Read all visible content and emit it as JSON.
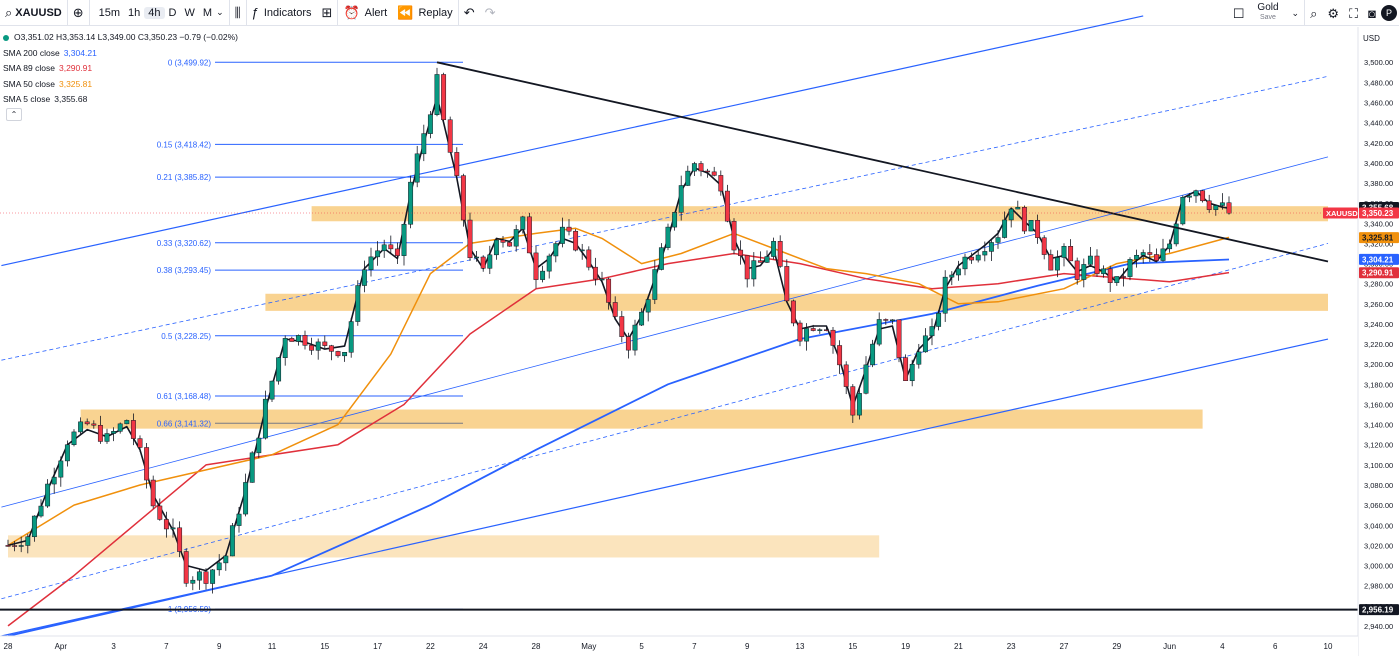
{
  "toolbar": {
    "symbol": "XAUUSD",
    "intervals": [
      "15m",
      "1h",
      "4h",
      "D",
      "W",
      "M"
    ],
    "active_interval": "4h",
    "indicators_label": "Indicators",
    "alert_label": "Alert",
    "replay_label": "Replay",
    "gold_label": "Gold",
    "save_label": "Save",
    "avatar_letter": "P"
  },
  "legend": {
    "ohlc": "O3,351.02 H3,353.14 L3,349.00 C3,350.23 −0.79 (−0.02%)",
    "sma": [
      {
        "label": "SMA 200 close",
        "value": "3,304.21",
        "color": "#2962ff"
      },
      {
        "label": "SMA 89 close",
        "value": "3,290.91",
        "color": "#e0303b"
      },
      {
        "label": "SMA 50 close",
        "value": "3,325.81",
        "color": "#f0900c"
      },
      {
        "label": "SMA 5 close",
        "value": "3,355.68",
        "color": "#131722"
      }
    ],
    "collapse_icon": "chevron-up-icon"
  },
  "chart_data": {
    "type": "candlestick",
    "symbol": "XAUUSD",
    "interval": "4h",
    "currency_label": "USD",
    "ylim": [
      2930,
      3535
    ],
    "y_ticks": [
      2940,
      2960,
      2980,
      3000,
      3020,
      3040,
      3060,
      3080,
      3100,
      3120,
      3140,
      3160,
      3180,
      3200,
      3220,
      3240,
      3260,
      3280,
      3300,
      3320,
      3340,
      3360,
      3380,
      3400,
      3420,
      3440,
      3460,
      3480,
      3500,
      3520
    ],
    "x_ticks": [
      {
        "label": "28",
        "bar": 0
      },
      {
        "label": "Apr",
        "bar": 8
      },
      {
        "label": "3",
        "bar": 16
      },
      {
        "label": "7",
        "bar": 24
      },
      {
        "label": "9",
        "bar": 32
      },
      {
        "label": "11",
        "bar": 40
      },
      {
        "label": "15",
        "bar": 48
      },
      {
        "label": "17",
        "bar": 56
      },
      {
        "label": "22",
        "bar": 64
      },
      {
        "label": "24",
        "bar": 72
      },
      {
        "label": "28",
        "bar": 80
      },
      {
        "label": "May",
        "bar": 88
      },
      {
        "label": "5",
        "bar": 96
      },
      {
        "label": "7",
        "bar": 104
      },
      {
        "label": "9",
        "bar": 112
      },
      {
        "label": "13",
        "bar": 120
      },
      {
        "label": "15",
        "bar": 128
      },
      {
        "label": "19",
        "bar": 136
      },
      {
        "label": "21",
        "bar": 144
      },
      {
        "label": "23",
        "bar": 152
      },
      {
        "label": "27",
        "bar": 160
      },
      {
        "label": "29",
        "bar": 168
      },
      {
        "label": "Jun",
        "bar": 176
      },
      {
        "label": "4",
        "bar": 184
      },
      {
        "label": "6",
        "bar": 192
      },
      {
        "label": "10",
        "bar": 200
      }
    ],
    "anchors": [
      [
        0,
        3020
      ],
      [
        3,
        3030
      ],
      [
        6,
        3080
      ],
      [
        9,
        3125
      ],
      [
        12,
        3140
      ],
      [
        15,
        3125
      ],
      [
        18,
        3145
      ],
      [
        20,
        3110
      ],
      [
        22,
        3060
      ],
      [
        25,
        3030
      ],
      [
        27,
        2990
      ],
      [
        30,
        2990
      ],
      [
        33,
        3010
      ],
      [
        36,
        3080
      ],
      [
        39,
        3160
      ],
      [
        42,
        3230
      ],
      [
        45,
        3225
      ],
      [
        48,
        3215
      ],
      [
        51,
        3215
      ],
      [
        54,
        3300
      ],
      [
        57,
        3320
      ],
      [
        59,
        3300
      ],
      [
        61,
        3380
      ],
      [
        63,
        3430
      ],
      [
        65,
        3480
      ],
      [
        66,
        3440
      ],
      [
        68,
        3380
      ],
      [
        70,
        3310
      ],
      [
        72,
        3290
      ],
      [
        74,
        3330
      ],
      [
        76,
        3320
      ],
      [
        78,
        3340
      ],
      [
        80,
        3290
      ],
      [
        82,
        3310
      ],
      [
        84,
        3330
      ],
      [
        86,
        3320
      ],
      [
        88,
        3300
      ],
      [
        90,
        3280
      ],
      [
        92,
        3240
      ],
      [
        94,
        3220
      ],
      [
        96,
        3250
      ],
      [
        98,
        3290
      ],
      [
        100,
        3330
      ],
      [
        102,
        3380
      ],
      [
        104,
        3400
      ],
      [
        106,
        3390
      ],
      [
        108,
        3380
      ],
      [
        110,
        3320
      ],
      [
        112,
        3290
      ],
      [
        114,
        3300
      ],
      [
        116,
        3320
      ],
      [
        118,
        3260
      ],
      [
        120,
        3230
      ],
      [
        122,
        3240
      ],
      [
        124,
        3240
      ],
      [
        126,
        3200
      ],
      [
        128,
        3150
      ],
      [
        130,
        3200
      ],
      [
        132,
        3240
      ],
      [
        134,
        3240
      ],
      [
        136,
        3180
      ],
      [
        138,
        3220
      ],
      [
        140,
        3230
      ],
      [
        142,
        3280
      ],
      [
        144,
        3300
      ],
      [
        146,
        3310
      ],
      [
        148,
        3320
      ],
      [
        150,
        3330
      ],
      [
        152,
        3360
      ],
      [
        154,
        3340
      ],
      [
        156,
        3330
      ],
      [
        158,
        3300
      ],
      [
        160,
        3310
      ],
      [
        162,
        3290
      ],
      [
        164,
        3300
      ],
      [
        166,
        3290
      ],
      [
        168,
        3280
      ],
      [
        170,
        3300
      ],
      [
        172,
        3310
      ],
      [
        174,
        3300
      ],
      [
        176,
        3320
      ],
      [
        178,
        3370
      ],
      [
        180,
        3375
      ],
      [
        182,
        3360
      ],
      [
        184,
        3355
      ],
      [
        185,
        3350
      ]
    ],
    "sma_paths": {
      "sma200": [
        [
          0,
          2930
        ],
        [
          40,
          2990
        ],
        [
          64,
          3060
        ],
        [
          80,
          3115
        ],
        [
          100,
          3180
        ],
        [
          120,
          3225
        ],
        [
          140,
          3250
        ],
        [
          156,
          3278
        ],
        [
          170,
          3300
        ],
        [
          185,
          3304
        ]
      ],
      "sma89": [
        [
          0,
          2940
        ],
        [
          10,
          2990
        ],
        [
          20,
          3045
        ],
        [
          30,
          3100
        ],
        [
          50,
          3120
        ],
        [
          60,
          3160
        ],
        [
          70,
          3230
        ],
        [
          80,
          3275
        ],
        [
          90,
          3285
        ],
        [
          100,
          3300
        ],
        [
          110,
          3310
        ],
        [
          120,
          3300
        ],
        [
          130,
          3285
        ],
        [
          140,
          3275
        ],
        [
          150,
          3280
        ],
        [
          160,
          3290
        ],
        [
          170,
          3285
        ],
        [
          176,
          3282
        ],
        [
          185,
          3291
        ]
      ],
      "sma50": [
        [
          0,
          3020
        ],
        [
          10,
          3060
        ],
        [
          20,
          3080
        ],
        [
          30,
          3095
        ],
        [
          40,
          3110
        ],
        [
          50,
          3140
        ],
        [
          58,
          3210
        ],
        [
          64,
          3290
        ],
        [
          70,
          3320
        ],
        [
          80,
          3330
        ],
        [
          86,
          3335
        ],
        [
          90,
          3325
        ],
        [
          96,
          3300
        ],
        [
          102,
          3310
        ],
        [
          110,
          3330
        ],
        [
          118,
          3310
        ],
        [
          124,
          3295
        ],
        [
          130,
          3290
        ],
        [
          138,
          3280
        ],
        [
          144,
          3260
        ],
        [
          150,
          3262
        ],
        [
          160,
          3275
        ],
        [
          168,
          3300
        ],
        [
          176,
          3310
        ],
        [
          185,
          3326
        ]
      ],
      "sma5": [
        [
          0,
          3020
        ],
        [
          3,
          3025
        ],
        [
          6,
          3075
        ],
        [
          9,
          3120
        ],
        [
          12,
          3135
        ],
        [
          15,
          3128
        ],
        [
          18,
          3138
        ],
        [
          20,
          3115
        ],
        [
          22,
          3070
        ],
        [
          25,
          3035
        ],
        [
          27,
          3000
        ],
        [
          30,
          2995
        ],
        [
          33,
          3010
        ],
        [
          36,
          3075
        ],
        [
          39,
          3155
        ],
        [
          42,
          3225
        ],
        [
          45,
          3222
        ],
        [
          48,
          3215
        ],
        [
          51,
          3218
        ],
        [
          54,
          3295
        ],
        [
          57,
          3315
        ],
        [
          59,
          3305
        ],
        [
          61,
          3370
        ],
        [
          63,
          3420
        ],
        [
          65,
          3465
        ],
        [
          66,
          3440
        ],
        [
          68,
          3385
        ],
        [
          70,
          3315
        ],
        [
          72,
          3295
        ],
        [
          74,
          3325
        ],
        [
          76,
          3322
        ],
        [
          78,
          3335
        ],
        [
          80,
          3295
        ],
        [
          82,
          3305
        ],
        [
          84,
          3325
        ],
        [
          86,
          3320
        ],
        [
          88,
          3302
        ],
        [
          90,
          3282
        ],
        [
          92,
          3245
        ],
        [
          94,
          3225
        ],
        [
          96,
          3248
        ],
        [
          98,
          3285
        ],
        [
          100,
          3325
        ],
        [
          102,
          3372
        ],
        [
          104,
          3395
        ],
        [
          106,
          3390
        ],
        [
          108,
          3378
        ],
        [
          110,
          3325
        ],
        [
          112,
          3295
        ],
        [
          114,
          3298
        ],
        [
          116,
          3315
        ],
        [
          118,
          3262
        ],
        [
          120,
          3235
        ],
        [
          122,
          3238
        ],
        [
          124,
          3238
        ],
        [
          126,
          3205
        ],
        [
          128,
          3158
        ],
        [
          130,
          3195
        ],
        [
          132,
          3235
        ],
        [
          134,
          3238
        ],
        [
          136,
          3185
        ],
        [
          138,
          3215
        ],
        [
          140,
          3228
        ],
        [
          142,
          3275
        ],
        [
          144,
          3298
        ],
        [
          146,
          3308
        ],
        [
          148,
          3318
        ],
        [
          150,
          3330
        ],
        [
          152,
          3355
        ],
        [
          154,
          3342
        ],
        [
          156,
          3330
        ],
        [
          158,
          3305
        ],
        [
          160,
          3308
        ],
        [
          162,
          3292
        ],
        [
          164,
          3298
        ],
        [
          166,
          3292
        ],
        [
          168,
          3282
        ],
        [
          170,
          3298
        ],
        [
          172,
          3308
        ],
        [
          174,
          3302
        ],
        [
          176,
          3318
        ],
        [
          178,
          3365
        ],
        [
          180,
          3372
        ],
        [
          182,
          3360
        ],
        [
          184,
          3356
        ],
        [
          185,
          3355
        ]
      ]
    },
    "fibonacci": [
      {
        "label": "0 (3,499.92)",
        "price": 3499.92
      },
      {
        "label": "0.15 (3,418.42)",
        "price": 3418.42
      },
      {
        "label": "0.21 (3,385.82)",
        "price": 3385.82
      },
      {
        "label": "0.33 (3,320.62)",
        "price": 3320.62
      },
      {
        "label": "0.38 (3,293.45)",
        "price": 3293.45
      },
      {
        "label": "0.5 (3,228.25)",
        "price": 3228.25
      },
      {
        "label": "0.61 (3,168.48)",
        "price": 3168.48
      },
      {
        "label": "0.66 (3,141.32)",
        "price": 3141.32
      },
      {
        "label": "1 (2,956.59)",
        "price": 2956.59
      }
    ],
    "zones": [
      {
        "bar1": 46,
        "bar2": 200,
        "low": 3342,
        "high": 3357,
        "opacity": 0.75
      },
      {
        "bar1": 39,
        "bar2": 200,
        "low": 3253,
        "high": 3270,
        "opacity": 0.75
      },
      {
        "bar1": 11,
        "bar2": 181,
        "low": 3136,
        "high": 3155,
        "opacity": 0.75
      },
      {
        "bar1": 0,
        "bar2": 132,
        "low": 3008,
        "high": 3030,
        "opacity": 0.45
      }
    ],
    "trendline": {
      "from": [
        65,
        3499.92
      ],
      "to": [
        200,
        3302
      ]
    },
    "channel": {
      "upper": {
        "from": [
          -1,
          3298
        ],
        "to": [
          172,
          3546
        ]
      },
      "mid_solid": {
        "from": [
          -1,
          3058
        ],
        "to": [
          200,
          3406
        ]
      },
      "mid_dashed": {
        "from": [
          -1,
          3204
        ],
        "to": [
          200,
          3486
        ]
      },
      "lower_dashed": {
        "from": [
          -1,
          2967
        ],
        "to": [
          200,
          3320
        ]
      },
      "lower": {
        "from": [
          -1,
          2930
        ],
        "to": [
          200,
          3225
        ]
      }
    },
    "horizontal_line": {
      "price": 2956.19,
      "label": "2,956.19"
    },
    "price_labels": [
      {
        "text": "3,355.68",
        "price": 3355.68,
        "bg": "#131722",
        "fg": "#ffffff"
      },
      {
        "text": "3,350.23",
        "price": 3350.23,
        "bg": "#f23645",
        "fg": "#ffffff"
      },
      {
        "text": "3,325.81",
        "price": 3325.81,
        "bg": "#f0900c",
        "fg": "#131722"
      },
      {
        "text": "3,304.21",
        "price": 3304.21,
        "bg": "#2962ff",
        "fg": "#ffffff"
      },
      {
        "text": "3,290.91",
        "price": 3290.91,
        "bg": "#e0303b",
        "fg": "#ffffff"
      }
    ],
    "symbol_tag": {
      "text": "XAUUSD",
      "price": 3350.23
    },
    "colors": {
      "up": "#089981",
      "down": "#f23645",
      "zone": "#f7c46c",
      "fib": "#2962ff",
      "trend": "#131722",
      "channel": "#2962ff"
    }
  }
}
